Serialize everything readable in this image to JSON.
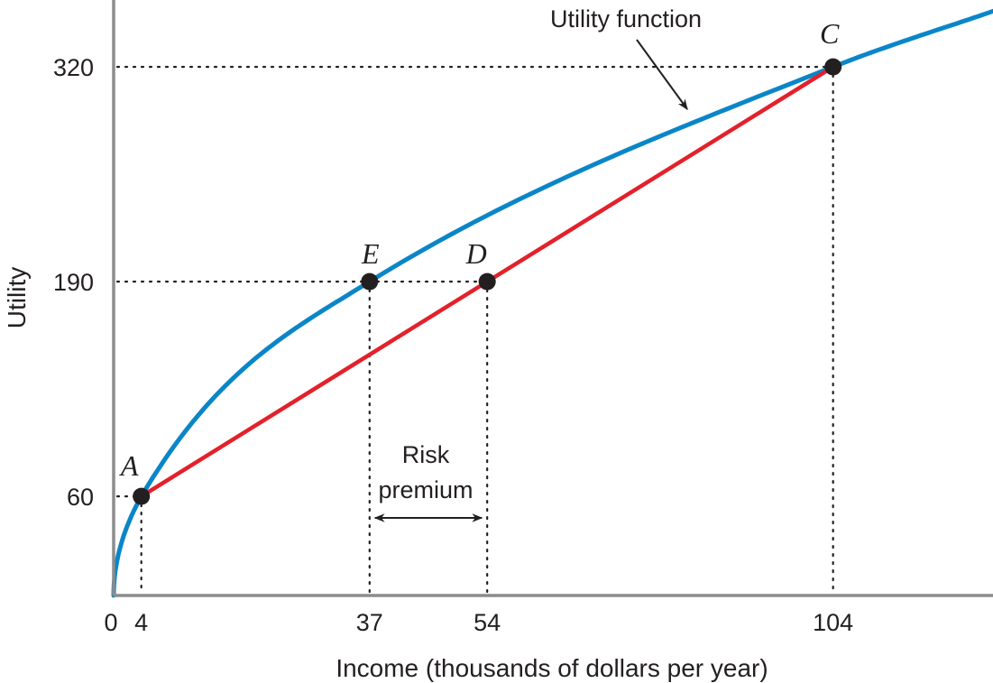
{
  "chart_data": {
    "type": "line",
    "title": "",
    "xlabel": "Income (thousands of dollars per year)",
    "ylabel": "Utility",
    "xlim": [
      0,
      128
    ],
    "ylim": [
      0,
      350
    ],
    "x_ticks": [
      0,
      4,
      37,
      54,
      104
    ],
    "y_ticks": [
      60,
      190,
      320
    ],
    "grid": false,
    "colors": {
      "utility_curve": "#0a86c8",
      "lottery_line": "#e3212b",
      "points": "#231f20",
      "axes": "#8c8c8c"
    },
    "series": [
      {
        "name": "Utility function",
        "kind": "curve",
        "function": "utility = 10 + 50*(income)^0.5 approx; passes through (4,60), (37,190), (104,320)",
        "points": [
          [
            0,
            0
          ],
          [
            4,
            60
          ],
          [
            37,
            190
          ],
          [
            104,
            320
          ],
          [
            128,
            355
          ]
        ]
      },
      {
        "kind": "segment",
        "points": [
          [
            4,
            60
          ],
          [
            104,
            320
          ]
        ]
      }
    ],
    "points": [
      {
        "label": "A",
        "x": 4,
        "y": 60
      },
      {
        "label": "E",
        "x": 37,
        "y": 190
      },
      {
        "label": "D",
        "x": 54,
        "y": 190
      },
      {
        "label": "C",
        "x": 104,
        "y": 320
      }
    ],
    "annotations": {
      "curve_label": "Utility function",
      "risk_premium_line1": "Risk",
      "risk_premium_line2": "premium",
      "risk_premium_from": 37,
      "risk_premium_to": 54
    }
  }
}
